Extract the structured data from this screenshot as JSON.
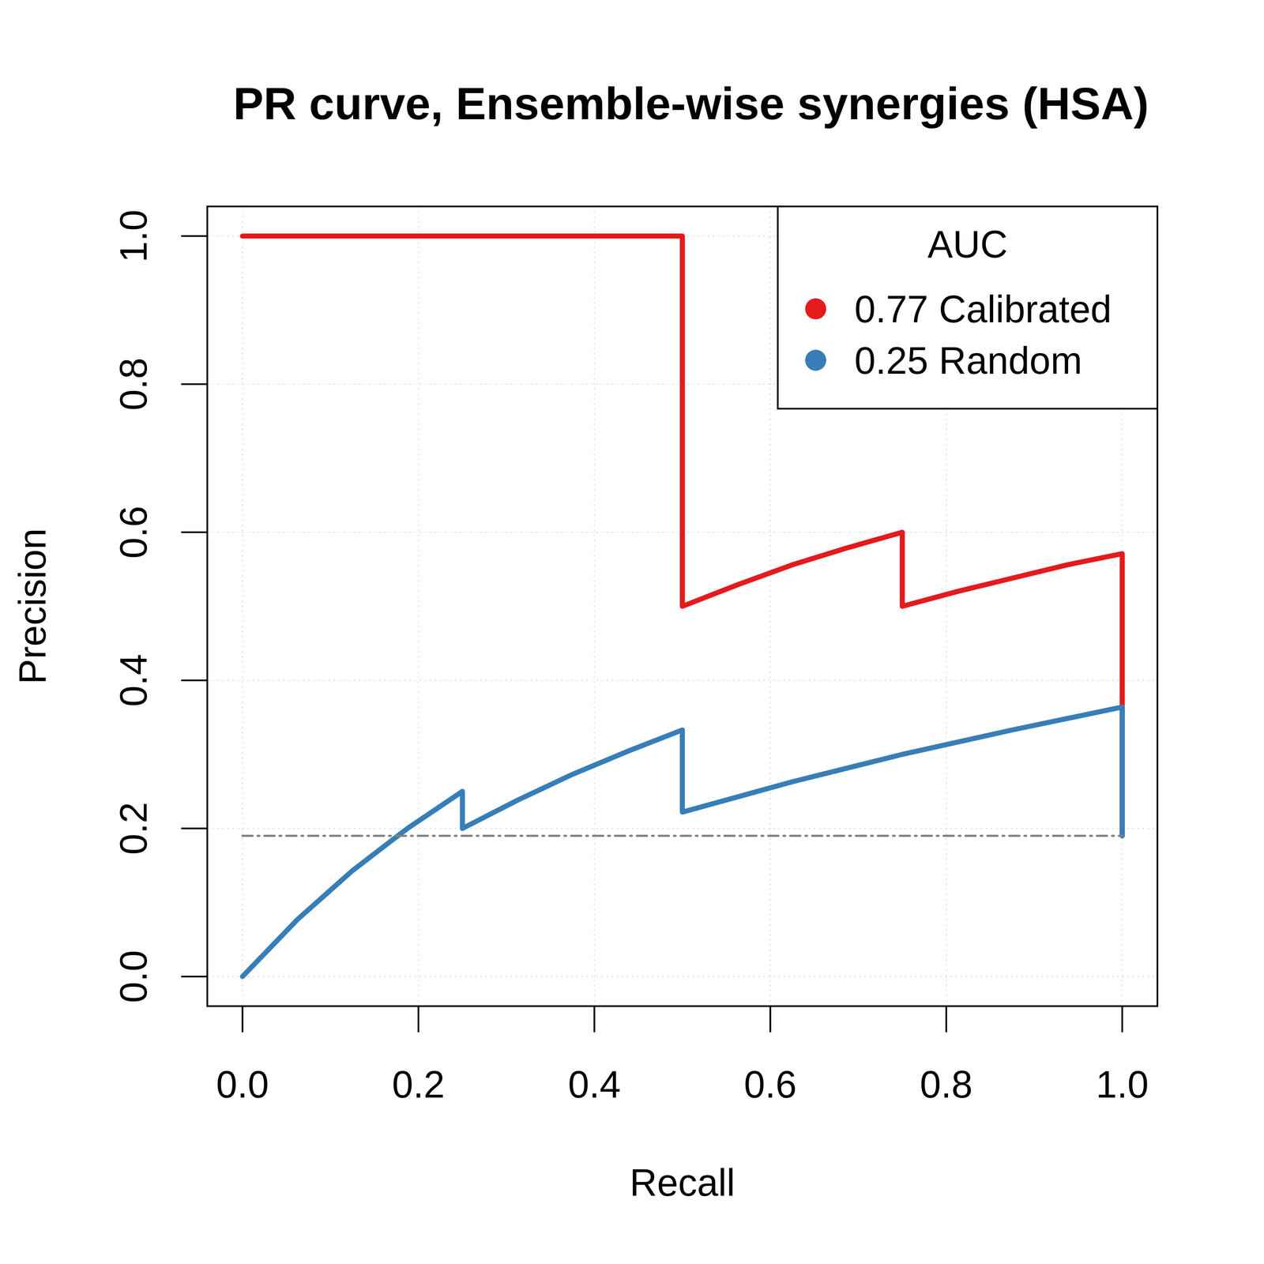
{
  "chart_data": {
    "type": "line",
    "title": "PR curve, Ensemble-wise synergies (HSA)",
    "x_label": "Recall",
    "y_label": "Precision",
    "xlim": [
      -0.04,
      1.04
    ],
    "ylim": [
      -0.04,
      1.04
    ],
    "xticks": [
      {
        "value": 0,
        "label": "0.0"
      },
      0.2,
      0.4,
      0.6,
      0.8,
      {
        "value": 1,
        "label": "1.0"
      }
    ],
    "yticks": [
      {
        "value": 0,
        "label": "0.0"
      },
      0.2,
      0.4,
      0.6,
      0.8,
      {
        "value": 1,
        "label": "1.0"
      }
    ],
    "grid": true,
    "legend": "topright",
    "legend_title": "AUC",
    "series": [
      {
        "name": "0.77 Calibrated",
        "color": "#e41a1c",
        "line_style": "solid",
        "x": [
          0,
          0.5,
          0.5,
          0.5625,
          0.625,
          0.6875,
          0.75,
          0.75,
          0.8125,
          0.875,
          0.9375,
          1.0,
          1.0
        ],
        "values": [
          1.0,
          1.0,
          0.5,
          0.529,
          0.556,
          0.579,
          0.6,
          0.5,
          0.52,
          0.538,
          0.556,
          0.571,
          0.19
        ]
      },
      {
        "name": "0.25 Random",
        "color": "#377eb8",
        "line_style": "solid",
        "x": [
          0,
          0.0625,
          0.125,
          0.1875,
          0.25,
          0.25,
          0.3125,
          0.375,
          0.4375,
          0.5,
          0.5,
          0.625,
          0.75,
          0.875,
          1.0,
          1.0
        ],
        "values": [
          0,
          0.077,
          0.143,
          0.2,
          0.25,
          0.2,
          0.238,
          0.273,
          0.304,
          0.333,
          0.222,
          0.263,
          0.3,
          0.333,
          0.364,
          0.19
        ]
      },
      {
        "color": "#808080",
        "line_style": "dashdot",
        "x": [
          0,
          1.0
        ],
        "values": [
          0.19,
          0.19
        ]
      }
    ]
  }
}
